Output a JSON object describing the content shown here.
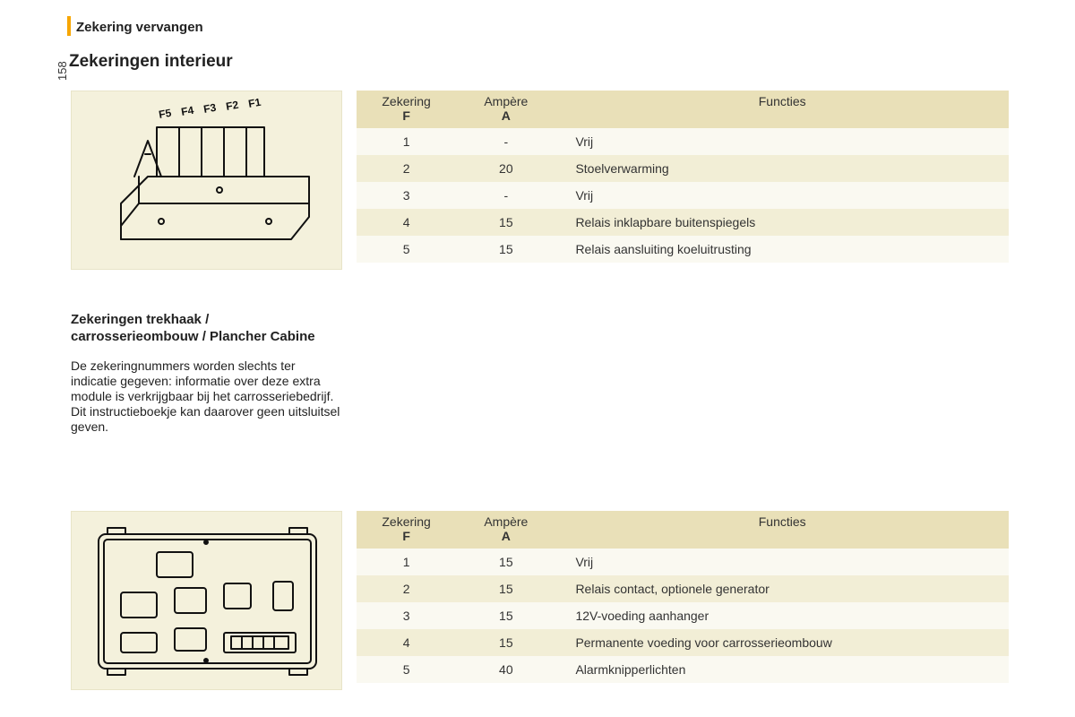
{
  "page_number": "158",
  "chapter_title": "Zekering vervangen",
  "section_title": "Zekeringen interieur",
  "subheading": "Zekeringen trekhaak /\ncarrosserieombouw / Plancher Cabine",
  "body_text": "De zekeringnummers worden slechts ter indicatie gegeven: informatie over deze extra module is verkrijgbaar bij het carrosseriebedrijf. Dit instructieboekje kan daarover geen uitsluitsel geven.",
  "accent_color": "#f7a600",
  "panel_bg": "#f4f1dc",
  "header_bg": "#e9e0b8",
  "row_odd_bg": "#faf9f1",
  "row_even_bg": "#f2eed6",
  "table_headers": {
    "fuse_top": "Zekering",
    "fuse_sub": "F",
    "amp_top": "Ampère",
    "amp_sub": "A",
    "func": "Functies"
  },
  "fuse_labels": [
    "F5",
    "F4",
    "F3",
    "F2",
    "F1"
  ],
  "table1": {
    "rows": [
      {
        "f": "1",
        "a": "-",
        "fn": "Vrij"
      },
      {
        "f": "2",
        "a": "20",
        "fn": "Stoelverwarming"
      },
      {
        "f": "3",
        "a": "-",
        "fn": "Vrij"
      },
      {
        "f": "4",
        "a": "15",
        "fn": "Relais inklapbare buitenspiegels"
      },
      {
        "f": "5",
        "a": "15",
        "fn": "Relais aansluiting koeluitrusting"
      }
    ]
  },
  "table2": {
    "rows": [
      {
        "f": "1",
        "a": "15",
        "fn": "Vrij"
      },
      {
        "f": "2",
        "a": "15",
        "fn": "Relais contact, optionele generator"
      },
      {
        "f": "3",
        "a": "15",
        "fn": "12V-voeding aanhanger"
      },
      {
        "f": "4",
        "a": "15",
        "fn": "Permanente voeding voor carrosserieombouw"
      },
      {
        "f": "5",
        "a": "40",
        "fn": "Alarmknipperlichten"
      }
    ]
  }
}
